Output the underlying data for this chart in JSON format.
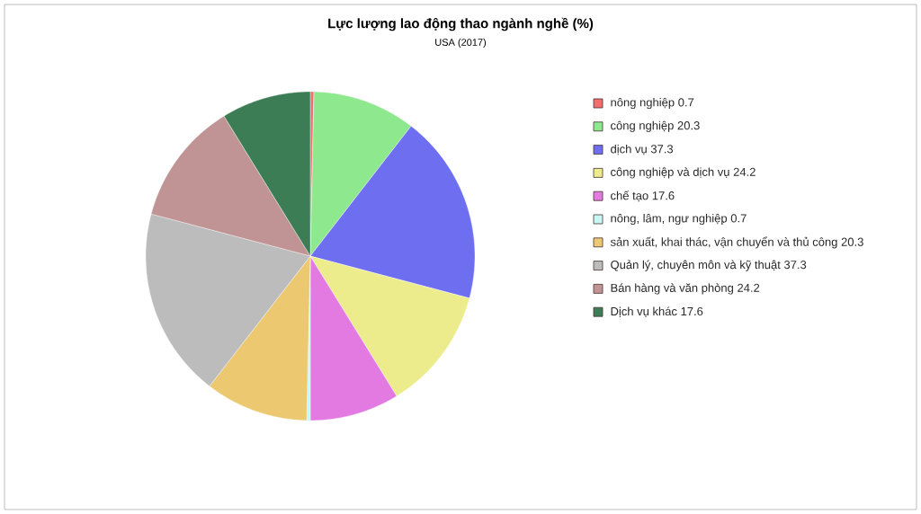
{
  "chart_data": {
    "type": "pie",
    "title": "Lực lượng lao động thao ngành nghề (%)",
    "subtitle": "USA (2017)",
    "categories": [
      "nông nghiệp",
      "công nghiệp",
      "dịch vụ",
      "công nghiệp và dịch vụ",
      "chế tạo",
      "nông, lâm, ngư nghiệp",
      "sản xuất, khai thác, vận chuyển và thủ công",
      "Quản lý, chuyên môn và kỹ thuật",
      "Bán hàng và văn phòng",
      "Dịch vụ khác"
    ],
    "values": [
      0.7,
      20.3,
      37.3,
      24.2,
      17.6,
      0.7,
      20.3,
      37.3,
      24.2,
      17.6
    ],
    "colors": [
      "#f26d6d",
      "#8ee88e",
      "#6e6ef0",
      "#ecec8c",
      "#e27ae2",
      "#c8f5f5",
      "#ecc870",
      "#bcbcbc",
      "#c09494",
      "#3d7d55"
    ],
    "legend": "right",
    "data_labels": true
  }
}
